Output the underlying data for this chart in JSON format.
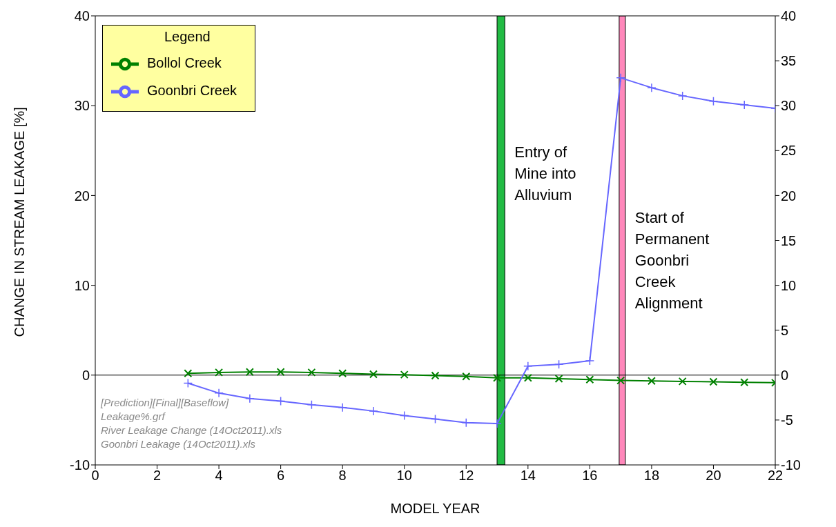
{
  "chart_data": {
    "type": "line",
    "xlabel": "MODEL YEAR",
    "ylabel": "CHANGE IN STREAM LEAKAGE  [%]",
    "legend_title": "Legend",
    "legend": "top left",
    "grid": false,
    "x": [
      3,
      4,
      5,
      6,
      7,
      8,
      9,
      10,
      11,
      12,
      13,
      14,
      15,
      16,
      17,
      18,
      19,
      20,
      21,
      22
    ],
    "series": [
      {
        "name": "Bollol Creek",
        "color": "#008000",
        "marker": "cross",
        "values": [
          0.2,
          0.3,
          0.35,
          0.35,
          0.3,
          0.2,
          0.1,
          0.05,
          -0.05,
          -0.15,
          -0.3,
          -0.3,
          -0.4,
          -0.5,
          -0.6,
          -0.65,
          -0.7,
          -0.75,
          -0.8,
          -0.85
        ]
      },
      {
        "name": "Goonbri Creek",
        "color": "#6666ff",
        "marker": "plus",
        "values": [
          -0.9,
          -2.0,
          -2.6,
          -2.9,
          -3.3,
          -3.6,
          -4.0,
          -4.5,
          -4.9,
          -5.3,
          -5.4,
          1.0,
          1.2,
          1.6,
          33.1,
          32.0,
          31.1,
          30.5,
          30.1,
          29.7
        ]
      }
    ],
    "xlim": [
      0,
      22
    ],
    "xticks": [
      0,
      2,
      4,
      6,
      8,
      10,
      12,
      14,
      16,
      18,
      20,
      22
    ],
    "ylim": [
      -10,
      40
    ],
    "yticks": [
      -10,
      0,
      10,
      20,
      30,
      40
    ],
    "y2lim": [
      -10,
      40
    ],
    "y2ticks": [
      -10,
      -5,
      0,
      5,
      10,
      15,
      20,
      25,
      30,
      35,
      40
    ],
    "ref_lines": [
      {
        "axis": "y",
        "value": 0,
        "color": "#000000"
      }
    ],
    "bands": [
      {
        "axis": "x",
        "from": 13,
        "to": 13.25,
        "label": "Entry of Mine into Alluvium",
        "color": "#22bb44"
      },
      {
        "axis": "x",
        "from": 16.95,
        "to": 17.15,
        "label": "Start of Permanent Goonbri Creek Alignment",
        "color": "#ff88bb"
      }
    ],
    "annotations": [
      "[Prediction][Final][Baseflow]",
      "Leakage%.grf",
      "River Leakage Change (14Oct2011).xls",
      "Goonbri Leakage (14Oct2011).xls"
    ]
  }
}
